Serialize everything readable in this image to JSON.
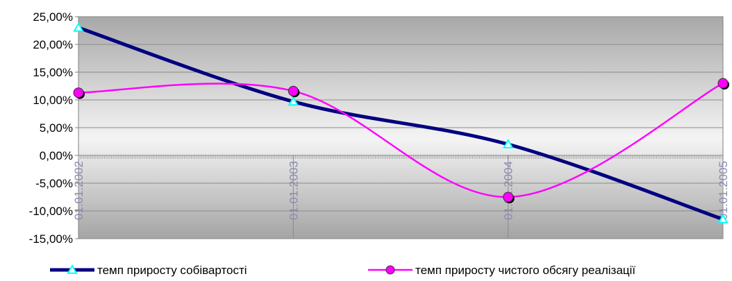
{
  "chart_data": {
    "type": "line",
    "title": "",
    "xlabel": "",
    "ylabel": "",
    "categories": [
      "01.01.2002",
      "01.01.2003",
      "01.01.2004",
      "01.01.2005"
    ],
    "y_ticks": [
      "25,00%",
      "20,00%",
      "15,00%",
      "10,00%",
      "5,00%",
      "0,00%",
      "-5,00%",
      "-10,00%",
      "-15,00%"
    ],
    "ylim": [
      -15,
      25
    ],
    "y_unit": "%",
    "grid": true,
    "legend_position": "bottom",
    "series": [
      {
        "name": "темп приросту собівартості",
        "values": [
          23.0,
          9.7,
          2.0,
          -11.5
        ],
        "color": "#000080",
        "marker": "triangle",
        "marker_color": "#00ffff"
      },
      {
        "name": "темп приросту чистого обсягу реалізації",
        "values": [
          11.3,
          11.6,
          -7.5,
          13.0
        ],
        "color": "#ff00ff",
        "marker": "circle",
        "marker_color": "#ff00ff"
      }
    ]
  }
}
